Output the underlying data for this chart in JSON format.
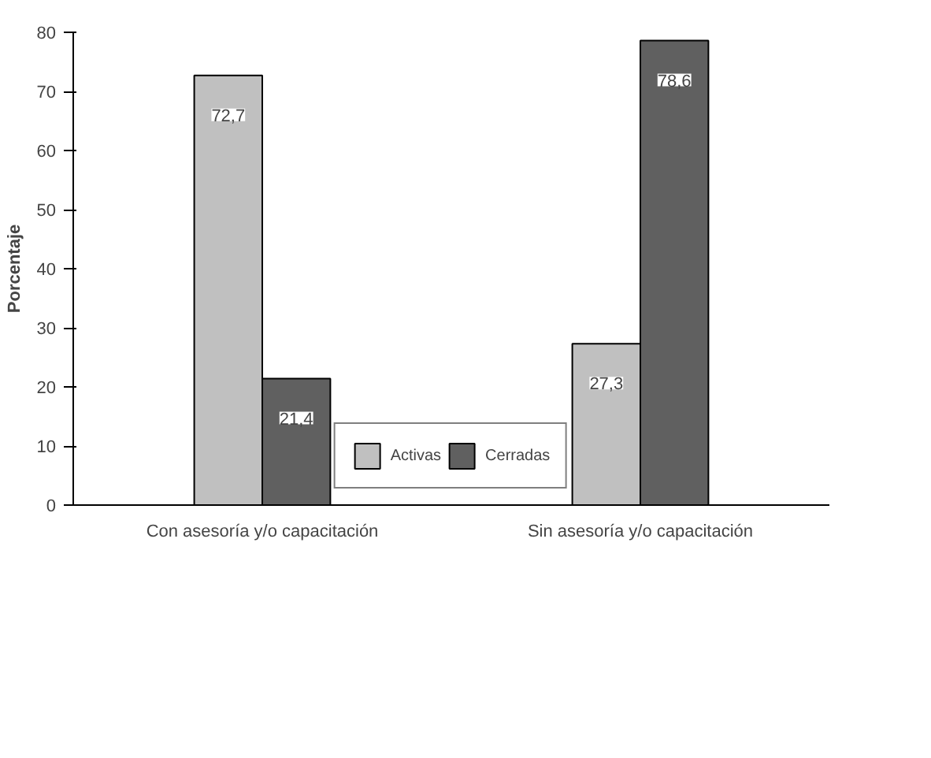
{
  "chart_data": {
    "type": "bar",
    "ylabel": "Porcentaje",
    "categories": [
      "Con asesoría y/o capacitación",
      "Sin asesoría y/o capacitación"
    ],
    "series": [
      {
        "name": "Activas",
        "color": "#c0c0c0",
        "values": [
          72.7,
          27.3
        ],
        "value_labels": [
          "72,7",
          "27,3"
        ]
      },
      {
        "name": "Cerradas",
        "color": "#606060",
        "values": [
          21.4,
          78.6
        ],
        "value_labels": [
          "21,4",
          "78,6"
        ]
      }
    ],
    "ylim": [
      0,
      80
    ],
    "yticks": [
      0,
      10,
      20,
      30,
      40,
      50,
      60,
      70,
      80
    ],
    "grid": false,
    "legend": "bottom"
  }
}
